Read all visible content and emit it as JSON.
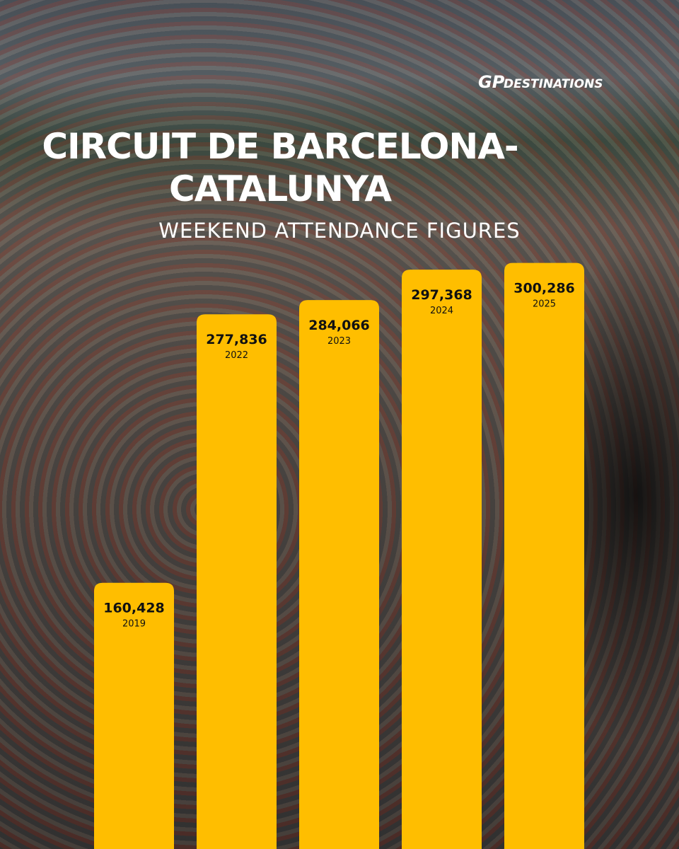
{
  "chart_data": {
    "type": "bar",
    "title": "CIRCUIT DE BARCELONA-CATALUNYA",
    "subtitle": "WEEKEND ATTENDANCE FIGURES",
    "logo_mark": "GP",
    "brand": "DESTINATIONS",
    "categories": [
      "2019",
      "2022",
      "2023",
      "2024",
      "2025"
    ],
    "values": [
      160428,
      277836,
      284066,
      297368,
      300286
    ],
    "value_labels": [
      "160,428",
      "277,836",
      "284,066",
      "297,368",
      "300,286"
    ],
    "color": "#ffbe00",
    "ylim": [
      44000,
      350000
    ]
  }
}
